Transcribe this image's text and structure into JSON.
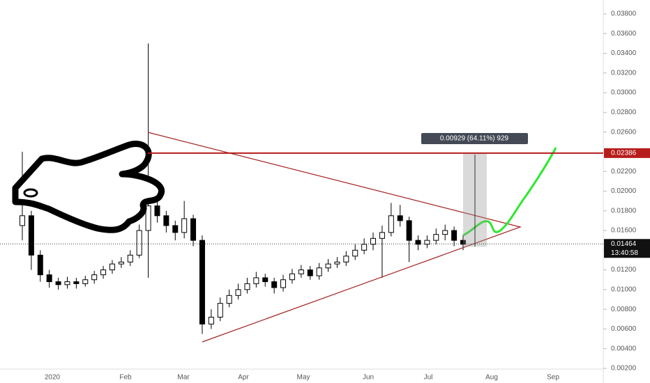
{
  "chart_data": {
    "type": "candlestick",
    "open": [
      0.0165,
      0.0175,
      0.0135,
      0.0115,
      0.0108,
      0.0105,
      0.0108,
      0.0106,
      0.011,
      0.0115,
      0.012,
      0.0126,
      0.0128,
      0.0135,
      0.016,
      0.0185,
      0.0175,
      0.0165,
      0.0158,
      0.0172,
      0.015,
      0.0065,
      0.0072,
      0.0086,
      0.0094,
      0.01,
      0.0106,
      0.0112,
      0.0108,
      0.0102,
      0.011,
      0.0116,
      0.012,
      0.0114,
      0.0122,
      0.0126,
      0.0128,
      0.0134,
      0.014,
      0.0146,
      0.0152,
      0.0158,
      0.0175,
      0.017,
      0.015,
      0.0146,
      0.015,
      0.0156,
      0.016,
      0.015
    ],
    "high": [
      0.024,
      0.018,
      0.014,
      0.012,
      0.0112,
      0.0113,
      0.0112,
      0.0114,
      0.0119,
      0.0124,
      0.013,
      0.0133,
      0.014,
      0.0166,
      0.035,
      0.0192,
      0.018,
      0.017,
      0.019,
      0.0176,
      0.0155,
      0.008,
      0.0092,
      0.01,
      0.0106,
      0.0112,
      0.0118,
      0.0116,
      0.0112,
      0.0115,
      0.0121,
      0.0125,
      0.0124,
      0.0127,
      0.0131,
      0.0133,
      0.0139,
      0.0146,
      0.0152,
      0.0158,
      0.0165,
      0.0188,
      0.0186,
      0.0174,
      0.0155,
      0.0155,
      0.0162,
      0.0166,
      0.0164,
      0.0155
    ],
    "low": [
      0.015,
      0.012,
      0.0108,
      0.0102,
      0.01,
      0.0101,
      0.0101,
      0.0103,
      0.0106,
      0.0111,
      0.0116,
      0.0122,
      0.0124,
      0.0132,
      0.0112,
      0.0168,
      0.0158,
      0.015,
      0.0152,
      0.0144,
      0.0055,
      0.006,
      0.0068,
      0.0082,
      0.009,
      0.0096,
      0.0102,
      0.0103,
      0.0096,
      0.0098,
      0.0106,
      0.0112,
      0.011,
      0.011,
      0.0118,
      0.0122,
      0.0124,
      0.013,
      0.0136,
      0.014,
      0.0112,
      0.0154,
      0.0164,
      0.0128,
      0.014,
      0.0142,
      0.0146,
      0.015,
      0.0144,
      0.014
    ],
    "close": [
      0.0175,
      0.0135,
      0.0115,
      0.0108,
      0.0105,
      0.0108,
      0.0106,
      0.011,
      0.0115,
      0.012,
      0.0126,
      0.0128,
      0.0135,
      0.016,
      0.0185,
      0.0175,
      0.0165,
      0.0158,
      0.0172,
      0.015,
      0.0065,
      0.0072,
      0.0086,
      0.0094,
      0.01,
      0.0106,
      0.0112,
      0.0108,
      0.0102,
      0.011,
      0.0116,
      0.012,
      0.0114,
      0.0122,
      0.0126,
      0.0128,
      0.0134,
      0.014,
      0.0146,
      0.0152,
      0.0158,
      0.0175,
      0.017,
      0.015,
      0.0146,
      0.015,
      0.0156,
      0.016,
      0.015,
      0.0146
    ],
    "x_labels": [
      "2020",
      "Feb",
      "Mar",
      "Apr",
      "May",
      "Jun",
      "Jul",
      "Aug",
      "Sep"
    ],
    "ylim": [
      0.00122,
      0.03941
    ],
    "yticks": [
      {
        "value": 0.002,
        "label": "0.00200"
      },
      {
        "value": 0.004,
        "label": "0.00400"
      },
      {
        "value": 0.006,
        "label": "0.00600"
      },
      {
        "value": 0.008,
        "label": "0.00800"
      },
      {
        "value": 0.01,
        "label": "0.01000"
      },
      {
        "value": 0.012,
        "label": "0.01200"
      },
      {
        "value": 0.014,
        "label": "0.01400"
      },
      {
        "value": 0.016,
        "label": "0.01600"
      },
      {
        "value": 0.018,
        "label": "0.01800"
      },
      {
        "value": 0.02,
        "label": "0.02000"
      },
      {
        "value": 0.022,
        "label": "0.02200"
      },
      {
        "value": 0.024,
        "label": "0.02400"
      },
      {
        "value": 0.026,
        "label": "0.02600"
      },
      {
        "value": 0.028,
        "label": "0.02800"
      },
      {
        "value": 0.03,
        "label": "0.03000"
      },
      {
        "value": 0.032,
        "label": "0.03200"
      },
      {
        "value": 0.034,
        "label": "0.03400"
      },
      {
        "value": 0.036,
        "label": "0.03600"
      },
      {
        "value": 0.038,
        "label": "0.03800"
      }
    ],
    "resistance": {
      "value": 0.02386,
      "label": "0.02386",
      "color": "#b71c1c"
    },
    "last_price": {
      "value": 0.01464,
      "label": "0.01464",
      "countdown": "13:40:58"
    },
    "measure_label": "0.00929 (64.11%) 929"
  }
}
